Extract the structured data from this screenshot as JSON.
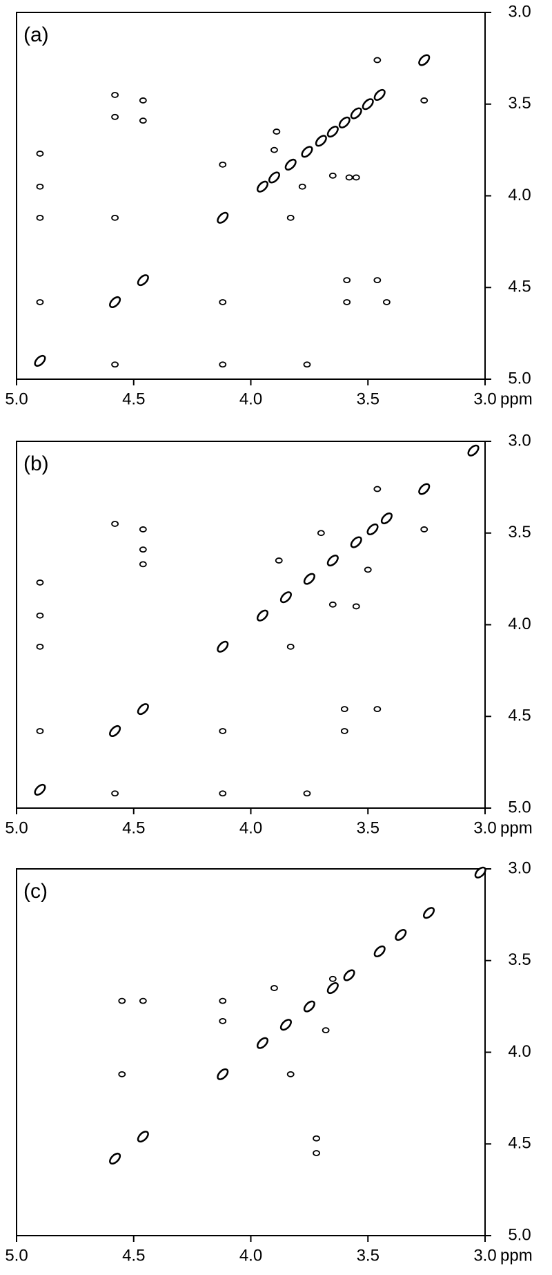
{
  "chart_data": [
    {
      "type": "scatter",
      "title": "(a)",
      "xlabel": "ppm",
      "x": [
        4.9,
        4.58,
        4.46,
        4.12,
        3.95,
        3.9,
        3.83,
        3.76,
        3.7,
        3.65,
        3.6,
        3.55,
        3.5,
        3.45,
        3.26,
        4.9,
        4.9,
        4.9,
        4.9,
        4.58,
        4.58,
        4.58,
        4.46,
        4.46,
        4.12,
        4.12,
        4.12,
        3.83,
        3.76,
        3.59,
        3.59,
        3.46,
        3.26,
        3.46,
        3.89,
        3.65,
        3.55,
        3.58,
        3.78,
        3.9,
        3.42,
        4.58
      ],
      "values": [
        4.9,
        4.58,
        4.46,
        4.12,
        3.95,
        3.9,
        3.83,
        3.76,
        3.7,
        3.65,
        3.6,
        3.55,
        3.5,
        3.45,
        3.26,
        3.77,
        3.95,
        4.12,
        4.58,
        3.45,
        3.57,
        4.12,
        3.48,
        3.59,
        3.83,
        4.58,
        4.92,
        4.12,
        4.92,
        4.46,
        4.58,
        3.26,
        3.48,
        4.46,
        3.65,
        3.89,
        3.9,
        3.9,
        3.95,
        3.75,
        4.58,
        4.92
      ],
      "xlim": [
        5.0,
        3.0
      ],
      "ylim": [
        3.0,
        5.0
      ],
      "xticks": [
        {
          "value": 5,
          "label": "5.0"
        },
        4.5,
        {
          "value": 4,
          "label": "4.0"
        },
        3.5,
        {
          "value": 3,
          "label": "3.0"
        }
      ],
      "yticks": [
        {
          "value": 3,
          "label": "3.0"
        },
        3.5,
        {
          "value": 4,
          "label": "4.0"
        },
        4.5,
        {
          "value": 5,
          "label": "5.0"
        }
      ]
    },
    {
      "type": "scatter",
      "title": "(b)",
      "xlabel": "ppm",
      "x": [
        4.9,
        4.58,
        4.46,
        4.12,
        3.95,
        3.85,
        3.75,
        3.65,
        3.55,
        3.48,
        3.42,
        3.26,
        3.05,
        4.9,
        4.9,
        4.9,
        4.9,
        4.58,
        4.58,
        4.46,
        4.46,
        4.46,
        4.12,
        4.12,
        3.83,
        3.76,
        3.6,
        3.46,
        3.26,
        3.46,
        3.88,
        3.65,
        3.55,
        3.6,
        3.5,
        3.7
      ],
      "values": [
        4.9,
        4.58,
        4.46,
        4.12,
        3.95,
        3.85,
        3.75,
        3.65,
        3.55,
        3.48,
        3.42,
        3.26,
        3.05,
        3.77,
        3.95,
        4.12,
        4.58,
        3.45,
        4.92,
        3.48,
        3.59,
        3.67,
        4.58,
        4.92,
        4.12,
        4.92,
        4.46,
        3.26,
        3.48,
        4.46,
        3.65,
        3.89,
        3.9,
        4.58,
        3.7,
        3.5
      ],
      "xlim": [
        5.0,
        3.0
      ],
      "ylim": [
        3.0,
        5.0
      ],
      "xticks": [
        {
          "value": 5,
          "label": "5.0"
        },
        4.5,
        {
          "value": 4,
          "label": "4.0"
        },
        3.5,
        {
          "value": 3,
          "label": "3.0"
        }
      ],
      "yticks": [
        {
          "value": 3,
          "label": "3.0"
        },
        3.5,
        {
          "value": 4,
          "label": "4.0"
        },
        4.5,
        {
          "value": 5,
          "label": "5.0"
        }
      ]
    },
    {
      "type": "scatter",
      "title": "(c)",
      "xlabel": "ppm",
      "x": [
        4.58,
        4.46,
        4.12,
        3.95,
        3.85,
        3.75,
        3.65,
        3.58,
        3.45,
        3.36,
        3.24,
        3.02,
        4.55,
        4.46,
        4.55,
        4.12,
        4.12,
        3.83,
        3.72,
        3.72,
        3.68,
        3.9,
        3.65
      ],
      "values": [
        4.58,
        4.46,
        4.12,
        3.95,
        3.85,
        3.75,
        3.65,
        3.58,
        3.45,
        3.36,
        3.24,
        3.02,
        3.72,
        3.72,
        4.12,
        3.72,
        3.83,
        4.12,
        4.47,
        4.55,
        3.88,
        3.65,
        3.6
      ],
      "xlim": [
        5.0,
        3.0
      ],
      "ylim": [
        3.0,
        5.0
      ],
      "xticks": [
        {
          "value": 5,
          "label": "5.0"
        },
        4.5,
        {
          "value": 4,
          "label": "4.0"
        },
        3.5,
        {
          "value": 3,
          "label": "3.0"
        }
      ],
      "yticks": [
        {
          "value": 3,
          "label": "3.0"
        },
        3.5,
        {
          "value": 4,
          "label": "4.0"
        },
        4.5,
        {
          "value": 5,
          "label": "5.0"
        }
      ]
    }
  ]
}
